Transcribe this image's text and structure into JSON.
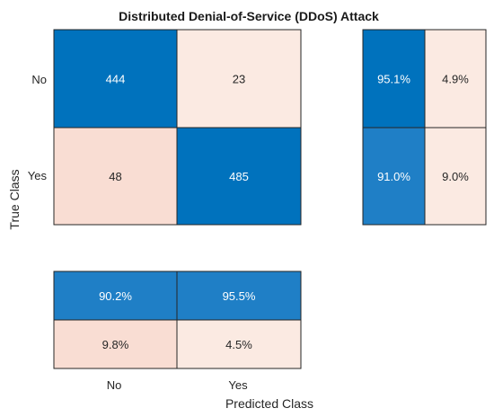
{
  "chart_data": {
    "type": "heatmap",
    "title": "Distributed Denial-of-Service (DDoS) Attack",
    "xlabel": "Predicted Class",
    "ylabel": "True Class",
    "classes": [
      "No",
      "Yes"
    ],
    "confusion_matrix": [
      [
        444,
        23
      ],
      [
        48,
        485
      ]
    ],
    "row_summary": {
      "percent_correct": [
        "95.1%",
        "91.0%"
      ],
      "percent_incorrect": [
        "4.9%",
        "9.0%"
      ]
    },
    "column_summary": {
      "percent_correct": [
        "90.2%",
        "95.5%"
      ],
      "percent_incorrect": [
        "9.8%",
        "4.5%"
      ]
    },
    "colors": {
      "correct_high": "#0072bd",
      "correct_mid": "#1f7fc6",
      "low_light": "#fbeae2",
      "low_peach": "#f9ddd3",
      "dark_text": "#262626",
      "light_text": "#ffffff",
      "border": "#262626"
    }
  }
}
